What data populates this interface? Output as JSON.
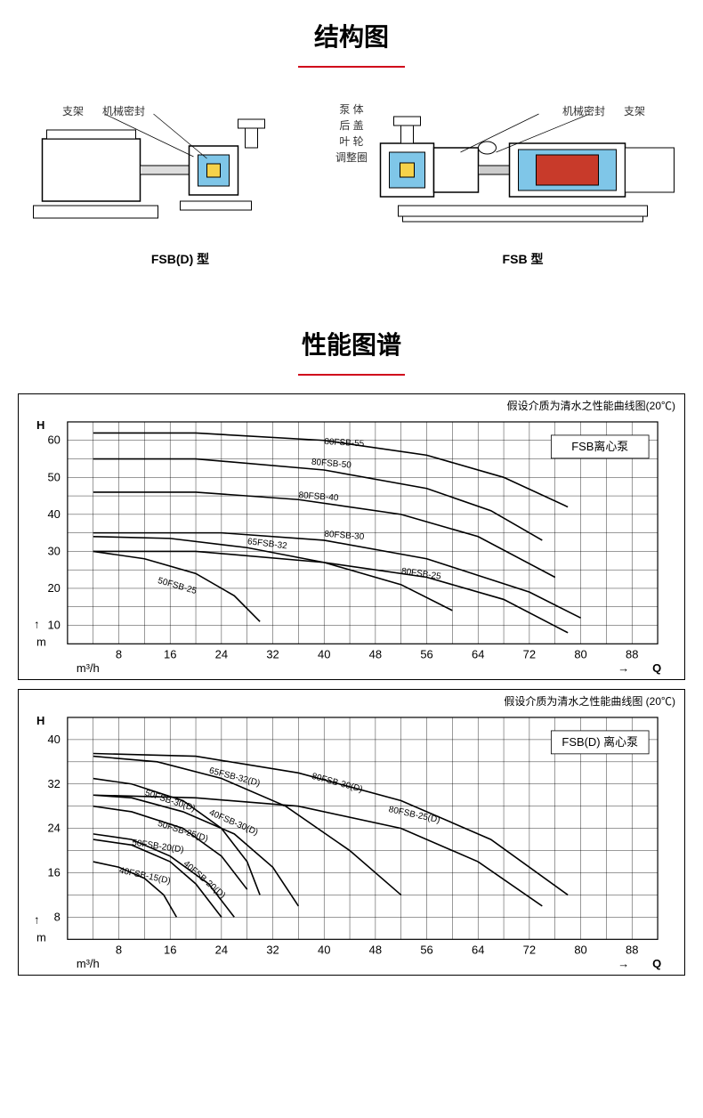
{
  "colors": {
    "accent": "#d0021b",
    "grid": "#000000",
    "bg": "#ffffff",
    "curve": "#000000",
    "text": "#000000"
  },
  "section1": {
    "title": "结构图",
    "center_labels": [
      "泵  体",
      "后  盖",
      "叶  轮",
      "调整圈"
    ],
    "left": {
      "labels": [
        "支架",
        "机械密封"
      ],
      "model": "FSB(D) 型"
    },
    "right": {
      "labels": [
        "机械密封",
        "支架"
      ],
      "model": "FSB 型"
    }
  },
  "section2": {
    "title": "性能图谱"
  },
  "chart1": {
    "caption": "假设介质为清水之性能曲线图(20℃)",
    "legend": "FSB离心泵",
    "y_axis_symbol": "H",
    "y_unit": "m",
    "x_unit": "m³/h",
    "x_axis_symbol": "Q",
    "y_ticks": [
      10,
      20,
      30,
      40,
      50,
      60
    ],
    "x_ticks": [
      8,
      16,
      24,
      32,
      40,
      48,
      56,
      64,
      72,
      80,
      88
    ],
    "ylim": [
      5,
      65
    ],
    "xlim": [
      0,
      92
    ],
    "curves": [
      {
        "name": "80FSB-55",
        "label_x": 40,
        "label_y": 59,
        "points": [
          [
            4,
            62
          ],
          [
            20,
            62
          ],
          [
            40,
            60
          ],
          [
            56,
            56
          ],
          [
            68,
            50
          ],
          [
            78,
            42
          ]
        ]
      },
      {
        "name": "80FSB-50",
        "label_x": 38,
        "label_y": 53.5,
        "points": [
          [
            4,
            55
          ],
          [
            20,
            55
          ],
          [
            40,
            52
          ],
          [
            56,
            47
          ],
          [
            66,
            41
          ],
          [
            74,
            33
          ]
        ]
      },
      {
        "name": "80FSB-40",
        "label_x": 36,
        "label_y": 44.5,
        "points": [
          [
            4,
            46
          ],
          [
            20,
            46
          ],
          [
            36,
            44
          ],
          [
            52,
            40
          ],
          [
            64,
            34
          ],
          [
            76,
            23
          ]
        ]
      },
      {
        "name": "80FSB-30",
        "label_x": 40,
        "label_y": 34,
        "points": [
          [
            4,
            35
          ],
          [
            24,
            35
          ],
          [
            40,
            33
          ],
          [
            56,
            28
          ],
          [
            72,
            19
          ],
          [
            80,
            12
          ]
        ]
      },
      {
        "name": "65FSB-32",
        "label_x": 28,
        "label_y": 32,
        "points": [
          [
            4,
            34
          ],
          [
            16,
            33.5
          ],
          [
            28,
            31
          ],
          [
            40,
            27
          ],
          [
            52,
            21
          ],
          [
            60,
            14
          ]
        ]
      },
      {
        "name": "80FSB-25",
        "label_x": 52,
        "label_y": 24,
        "points": [
          [
            4,
            30
          ],
          [
            20,
            30
          ],
          [
            40,
            27
          ],
          [
            56,
            23
          ],
          [
            68,
            17
          ],
          [
            78,
            8
          ]
        ]
      },
      {
        "name": "50FSB-25",
        "label_x": 14,
        "label_y": 21.5,
        "points": [
          [
            4,
            30
          ],
          [
            12,
            28
          ],
          [
            20,
            24
          ],
          [
            26,
            18
          ],
          [
            30,
            11
          ]
        ]
      }
    ]
  },
  "chart2": {
    "caption": "假设介质为清水之性能曲线图  (20℃)",
    "legend": "FSB(D) 离心泵",
    "y_axis_symbol": "H",
    "y_unit": "m",
    "x_unit": "m³/h",
    "x_axis_symbol": "Q",
    "y_ticks": [
      8,
      16,
      24,
      32,
      40
    ],
    "x_ticks": [
      8,
      16,
      24,
      32,
      40,
      48,
      56,
      64,
      72,
      80,
      88
    ],
    "ylim": [
      4,
      44
    ],
    "xlim": [
      0,
      92
    ],
    "curves": [
      {
        "name": "80FSB-30(D)",
        "label_x": 38,
        "label_y": 33,
        "points": [
          [
            4,
            37.5
          ],
          [
            20,
            37
          ],
          [
            36,
            34
          ],
          [
            52,
            29
          ],
          [
            66,
            22
          ],
          [
            78,
            12
          ]
        ]
      },
      {
        "name": "65FSB-32(D)",
        "label_x": 22,
        "label_y": 34,
        "points": [
          [
            4,
            37
          ],
          [
            14,
            36
          ],
          [
            24,
            33
          ],
          [
            34,
            28
          ],
          [
            44,
            20
          ],
          [
            52,
            12
          ]
        ]
      },
      {
        "name": "80FSB-25(D)",
        "label_x": 50,
        "label_y": 27,
        "points": [
          [
            4,
            30
          ],
          [
            20,
            29.5
          ],
          [
            36,
            28
          ],
          [
            52,
            24
          ],
          [
            64,
            18
          ],
          [
            74,
            10
          ]
        ]
      },
      {
        "name": "50FSB-30(D)",
        "label_x": 12,
        "label_y": 30,
        "points": [
          [
            4,
            33
          ],
          [
            10,
            32
          ],
          [
            18,
            29
          ],
          [
            24,
            24
          ],
          [
            28,
            18
          ],
          [
            30,
            12
          ]
        ]
      },
      {
        "name": "40FSB-30(D)",
        "label_x": 22,
        "label_y": 26.5,
        "points": [
          [
            4,
            30
          ],
          [
            10,
            29.5
          ],
          [
            18,
            27
          ],
          [
            26,
            23
          ],
          [
            32,
            17
          ],
          [
            36,
            10
          ]
        ]
      },
      {
        "name": "50FSB-25(D)",
        "label_x": 14,
        "label_y": 24.5,
        "points": [
          [
            4,
            28
          ],
          [
            10,
            27
          ],
          [
            18,
            24
          ],
          [
            24,
            19
          ],
          [
            28,
            13
          ]
        ]
      },
      {
        "name": "50FSB-20(D)",
        "label_x": 10,
        "label_y": 21,
        "points": [
          [
            4,
            23
          ],
          [
            10,
            22
          ],
          [
            16,
            19
          ],
          [
            22,
            14
          ],
          [
            26,
            8
          ]
        ]
      },
      {
        "name": "40FSB-20(D)",
        "label_x": 18,
        "label_y": 17.5,
        "points": [
          [
            4,
            22
          ],
          [
            10,
            21
          ],
          [
            16,
            18
          ],
          [
            20,
            14
          ],
          [
            24,
            8
          ]
        ]
      },
      {
        "name": "40FSB-15(D)",
        "label_x": 8,
        "label_y": 16,
        "points": [
          [
            4,
            18
          ],
          [
            8,
            17
          ],
          [
            12,
            15
          ],
          [
            15,
            12
          ],
          [
            17,
            8
          ]
        ]
      }
    ]
  }
}
